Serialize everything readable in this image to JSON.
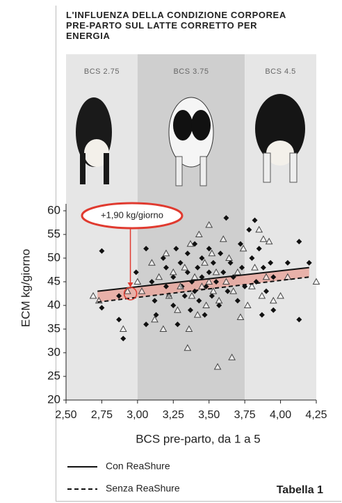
{
  "chart_data": {
    "type": "scatter",
    "title": "L'INFLUENZA DELLA CONDIZIONE CORPOREA PRE-PARTO SUL LATTE CORRETTO PER ENERGIA",
    "x_label": "BCS pre-parto, da 1 a 5",
    "y_label": "ECM kg/giorno",
    "xlim": [
      2.5,
      4.25
    ],
    "ylim": [
      20,
      60
    ],
    "xticks": [
      {
        "value": 2.5,
        "label": "2,50"
      },
      {
        "value": 2.75,
        "label": "2,75"
      },
      {
        "value": 3.0,
        "label": "3,00"
      },
      {
        "value": 3.25,
        "label": "3,25"
      },
      {
        "value": 3.5,
        "label": "3,50"
      },
      {
        "value": 3.75,
        "label": "3,75"
      },
      {
        "value": 4.0,
        "label": "4,00"
      },
      {
        "value": 4.25,
        "label": "4,25"
      }
    ],
    "yticks": [
      20,
      25,
      30,
      35,
      40,
      45,
      50,
      55,
      60
    ],
    "bands": [
      {
        "label": "BCS 2.75",
        "range": [
          2.5,
          3.0
        ],
        "color": "#e6e6e6"
      },
      {
        "label": "BCS 3.75",
        "range": [
          3.0,
          3.75
        ],
        "color": "#cfcfcf"
      },
      {
        "label": "BCS 4.5",
        "range": [
          3.75,
          4.25
        ],
        "color": "#e6e6e6"
      }
    ],
    "series": [
      {
        "name": "Con ReaShure",
        "marker": "diamond",
        "color": "#111111",
        "dash": false,
        "x": [
          2.75,
          2.75,
          2.87,
          2.87,
          2.9,
          2.99,
          3.06,
          3.06,
          3.1,
          3.12,
          3.13,
          3.18,
          3.2,
          3.2,
          3.22,
          3.25,
          3.25,
          3.27,
          3.28,
          3.3,
          3.31,
          3.33,
          3.35,
          3.35,
          3.37,
          3.38,
          3.4,
          3.4,
          3.42,
          3.43,
          3.45,
          3.45,
          3.47,
          3.48,
          3.5,
          3.5,
          3.52,
          3.53,
          3.55,
          3.57,
          3.58,
          3.6,
          3.62,
          3.63,
          3.65,
          3.67,
          3.7,
          3.72,
          3.73,
          3.75,
          3.78,
          3.8,
          3.82,
          3.83,
          3.85,
          3.87,
          3.88,
          3.9,
          3.93,
          3.95,
          4.05,
          4.13,
          4.13,
          4.2,
          3.95
        ],
        "values": [
          51.5,
          39.5,
          42,
          37,
          33,
          47,
          52,
          36,
          45,
          41,
          38,
          50,
          44,
          48,
          42,
          40,
          46,
          52,
          36,
          49,
          44,
          42,
          51,
          47,
          39,
          45,
          53,
          43,
          48,
          41,
          46,
          50,
          38,
          44,
          52,
          47,
          42,
          49,
          45,
          40,
          51,
          47,
          58.5,
          43,
          49,
          46,
          41,
          53,
          48,
          44,
          56,
          50,
          58,
          45,
          52,
          38,
          48,
          43,
          49,
          46,
          49,
          53.5,
          37,
          49,
          39
        ],
        "fit": {
          "x": [
            2.72,
            4.2
          ],
          "values": [
            43,
            48
          ]
        }
      },
      {
        "name": "Senza ReaShure",
        "marker": "triangle",
        "color": "#444444",
        "dash": true,
        "x": [
          2.69,
          2.73,
          2.9,
          2.93,
          3.0,
          3.03,
          3.1,
          3.12,
          3.15,
          3.18,
          3.2,
          3.22,
          3.25,
          3.28,
          3.3,
          3.33,
          3.35,
          3.36,
          3.37,
          3.38,
          3.4,
          3.42,
          3.43,
          3.45,
          3.47,
          3.48,
          3.5,
          3.5,
          3.52,
          3.53,
          3.55,
          3.56,
          3.57,
          3.6,
          3.62,
          3.64,
          3.66,
          3.67,
          3.7,
          3.72,
          3.74,
          3.77,
          3.8,
          3.82,
          3.85,
          3.87,
          3.9,
          3.92,
          3.95,
          4.0,
          4.05,
          4.25,
          3.88
        ],
        "values": [
          42,
          41,
          35,
          43,
          45,
          43,
          49,
          37,
          46,
          35,
          51,
          42,
          47,
          39,
          44,
          48,
          31,
          35,
          53,
          42,
          46,
          38,
          55,
          44,
          49,
          40,
          57,
          45,
          51,
          43,
          47,
          27,
          41,
          54,
          45,
          50,
          29,
          43,
          47,
          37.5,
          52,
          40,
          44,
          48,
          56,
          42,
          46,
          53.5,
          41,
          42,
          46,
          45,
          54
        ],
        "fit": {
          "x": [
            2.72,
            4.2
          ],
          "values": [
            40.7,
            46
          ]
        }
      }
    ],
    "difference_color": "#e8a79e",
    "annotation": {
      "text": "+1,90 kg/giorno",
      "x": 2.95,
      "y": 42.5,
      "color": "#e03a2f"
    },
    "table_label": "Tabella 1"
  }
}
